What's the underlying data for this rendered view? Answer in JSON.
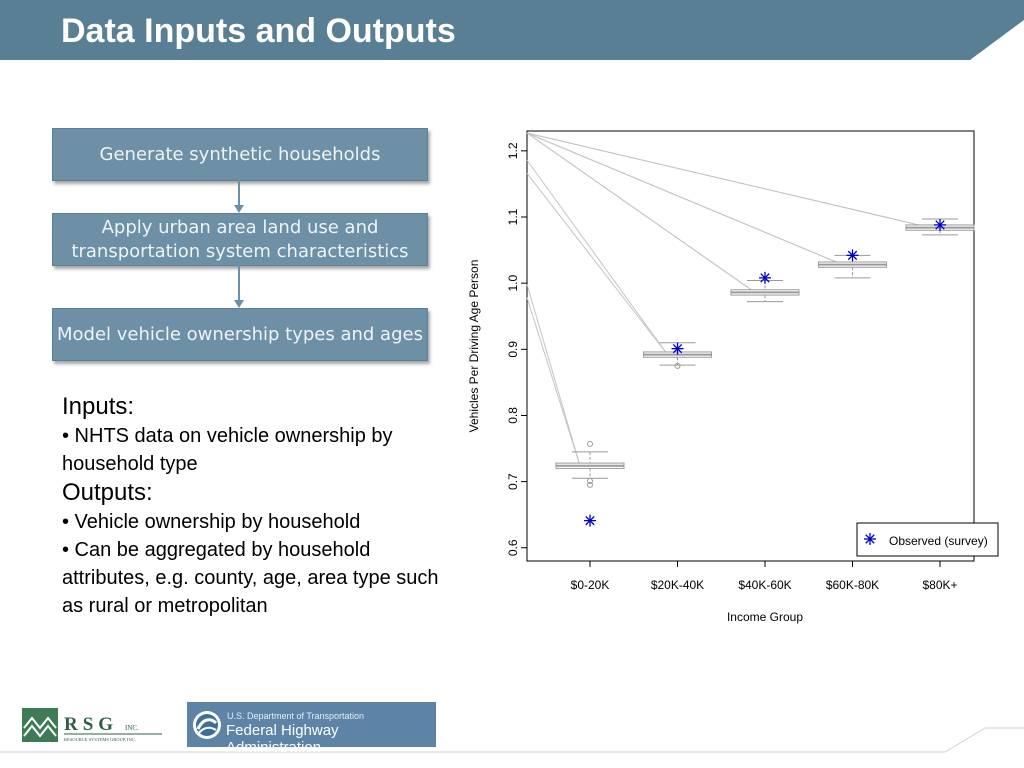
{
  "slide": {
    "title": "Data Inputs and Outputs",
    "colors": {
      "title_bar": "#587f93",
      "flow_box": "#6d90a6",
      "observed_marker": "#0000cc"
    }
  },
  "flow": [
    {
      "label": "Generate synthetic households"
    },
    {
      "label": "Apply urban area land use and transportation system characteristics"
    },
    {
      "label": "Model vehicle ownership types and ages"
    }
  ],
  "io": {
    "inputs_heading": "Inputs:",
    "inputs": [
      "• NHTS data on vehicle ownership by household type"
    ],
    "outputs_heading": "Outputs:",
    "outputs": [
      "• Vehicle ownership by household",
      "• Can be aggregated by household attributes, e.g. county, age, area type such as rural or metropolitan"
    ]
  },
  "chart_data": {
    "type": "box",
    "title": "",
    "xlabel": "Income Group",
    "ylabel": "Vehicles Per Driving Age Person",
    "categories": [
      "$0-20K",
      "$20K-40K",
      "$40K-60K",
      "$60K-80K",
      "$80K+"
    ],
    "ylim": [
      0.58,
      1.23
    ],
    "yticks": [
      "0.6",
      "0.7",
      "0.8",
      "0.9",
      "1.0",
      "1.1",
      "1.2"
    ],
    "boxes": [
      {
        "min": 0.705,
        "q1": 0.72,
        "median": 0.724,
        "q3": 0.728,
        "max": 0.745,
        "outliers": [
          0.757,
          0.701,
          0.695
        ]
      },
      {
        "min": 0.876,
        "q1": 0.888,
        "median": 0.892,
        "q3": 0.896,
        "max": 0.91,
        "outliers": [
          0.875
        ]
      },
      {
        "min": 0.972,
        "q1": 0.982,
        "median": 0.986,
        "q3": 0.99,
        "max": 1.004,
        "outliers": []
      },
      {
        "min": 1.008,
        "q1": 1.024,
        "median": 1.028,
        "q3": 1.032,
        "max": 1.042,
        "outliers": []
      },
      {
        "min": 1.073,
        "q1": 1.08,
        "median": 1.084,
        "q3": 1.088,
        "max": 1.097,
        "outliers": []
      }
    ],
    "observed": {
      "name": "Observed (survey)",
      "values": [
        0.641,
        0.901,
        1.008,
        1.042,
        1.088
      ]
    },
    "legend_position": "bottom-right",
    "grid": false
  },
  "logos": {
    "rsg_letters": "RSG",
    "rsg_suffix": "INC.",
    "rsg_tagline": "RESOURCE SYSTEMS GROUP, INC.",
    "fhwa_small": "U.S. Department of Transportation",
    "fhwa_big": "Federal Highway Administration"
  }
}
